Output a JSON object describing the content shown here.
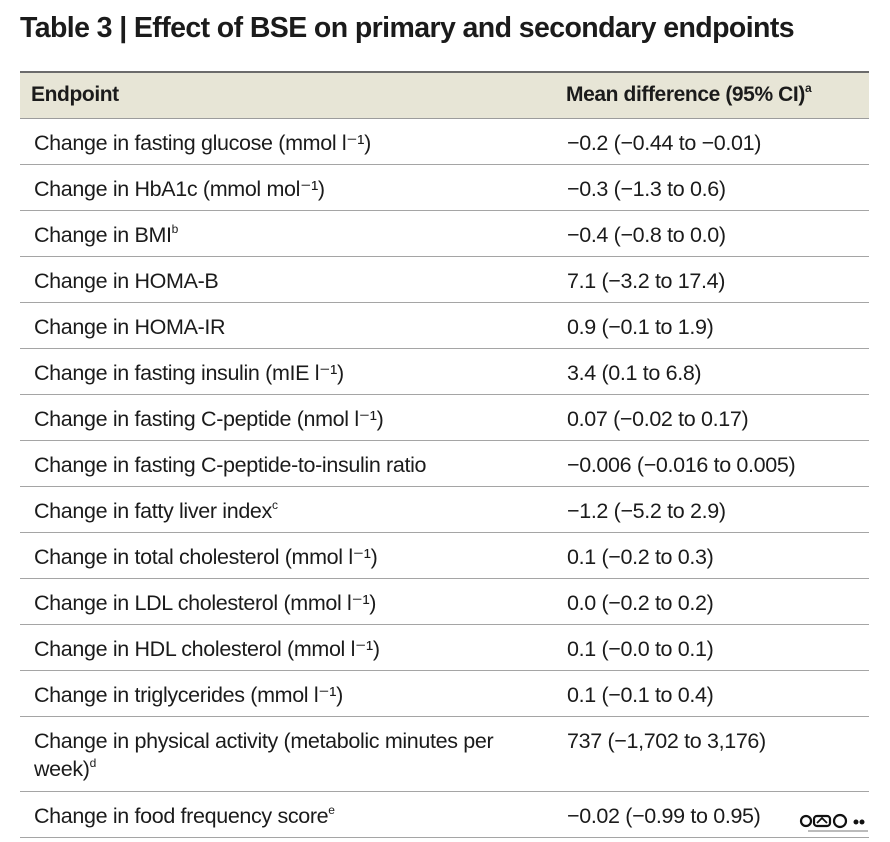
{
  "title": "Table 3 | Effect of BSE on primary and secondary endpoints",
  "header": {
    "col1": "Endpoint",
    "col2": "Mean difference (95% CI)",
    "col2_note": "a"
  },
  "rows": [
    {
      "endpoint": "Change in fasting glucose (mmol l⁻¹)",
      "note": "",
      "value": "−0.2 (−0.44 to −0.01)"
    },
    {
      "endpoint": "Change in HbA1c (mmol mol⁻¹)",
      "note": "",
      "value": "−0.3 (−1.3 to 0.6)"
    },
    {
      "endpoint": "Change in BMI",
      "note": "b",
      "value": "−0.4 (−0.8 to 0.0)"
    },
    {
      "endpoint": "Change in HOMA-B",
      "note": "",
      "value": "7.1 (−3.2 to 17.4)"
    },
    {
      "endpoint": "Change in HOMA-IR",
      "note": "",
      "value": "0.9 (−0.1 to 1.9)"
    },
    {
      "endpoint": "Change in fasting insulin (mIE l⁻¹)",
      "note": "",
      "value": "3.4 (0.1 to 6.8)"
    },
    {
      "endpoint": "Change in fasting C-peptide (nmol l⁻¹)",
      "note": "",
      "value": "0.07 (−0.02 to 0.17)"
    },
    {
      "endpoint": "Change in fasting C-peptide-to-insulin ratio",
      "note": "",
      "value": "−0.006 (−0.016 to 0.005)"
    },
    {
      "endpoint": "Change in fatty liver index",
      "note": "c",
      "value": "−1.2 (−5.2 to 2.9)"
    },
    {
      "endpoint": "Change in total cholesterol (mmol l⁻¹)",
      "note": "",
      "value": "0.1 (−0.2 to 0.3)"
    },
    {
      "endpoint": "Change in LDL cholesterol (mmol l⁻¹)",
      "note": "",
      "value": "0.0 (−0.2 to 0.2)"
    },
    {
      "endpoint": "Change in HDL cholesterol (mmol l⁻¹)",
      "note": "",
      "value": "0.1 (−0.0 to 0.1)"
    },
    {
      "endpoint": "Change in triglycerides (mmol l⁻¹)",
      "note": "",
      "value": "0.1 (−0.1 to 0.4)"
    },
    {
      "endpoint": "Change in physical activity (metabolic minutes per week)",
      "note": "d",
      "value": "737 (−1,702 to 3,176)"
    },
    {
      "endpoint": "Change in food frequency score",
      "note": "e",
      "value": "−0.02 (−0.99 to 0.95)"
    }
  ],
  "watermark": {
    "icon": "watermark-logo-icon",
    "color": "#111111"
  }
}
